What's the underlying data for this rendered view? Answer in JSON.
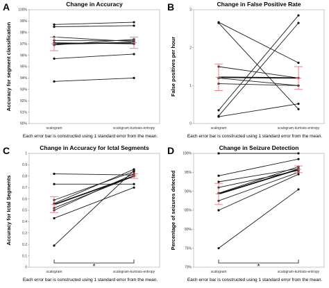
{
  "chart_data": [
    {
      "panel_label": "A",
      "type": "line",
      "title": "Change in Accuracy",
      "ylabel": "Accuracy for segment classification",
      "categories": [
        "scalogram",
        "scalogram-kurtosis-entropy"
      ],
      "yticks": [
        "90%",
        "91%",
        "92%",
        "93%",
        "94%",
        "95%",
        "96%",
        "97%",
        "98%",
        "99%",
        "100%"
      ],
      "ylim": [
        90,
        100
      ],
      "series": [
        {
          "values": [
            98.7,
            98.9
          ]
        },
        {
          "values": [
            98.5,
            98.6
          ]
        },
        {
          "values": [
            97.6,
            97.2
          ]
        },
        {
          "values": [
            97.3,
            97.3
          ]
        },
        {
          "values": [
            97.1,
            97.0
          ]
        },
        {
          "values": [
            96.9,
            97.4
          ]
        },
        {
          "values": [
            95.7,
            96.1
          ]
        },
        {
          "values": [
            93.7,
            94.0
          ]
        }
      ],
      "mean": [
        97.0,
        97.1
      ],
      "error": [
        0.6,
        0.5
      ],
      "note": "Each error bar is constructed using 1 standard error from the mean."
    },
    {
      "panel_label": "B",
      "type": "line",
      "title": "Change in False Positive Rate",
      "ylabel": "False positives per hour",
      "categories": [
        "scalogram",
        "scalogram-kurtosis-entropy"
      ],
      "yticks": [
        "0",
        "1",
        "2",
        "3"
      ],
      "ylim": [
        0,
        3
      ],
      "series": [
        {
          "values": [
            2.67,
            1.6
          ]
        },
        {
          "values": [
            2.65,
            0.38
          ]
        },
        {
          "values": [
            1.5,
            1.2
          ]
        },
        {
          "values": [
            1.2,
            1.0
          ]
        },
        {
          "values": [
            1.05,
            1.0
          ]
        },
        {
          "values": [
            0.35,
            2.85
          ]
        },
        {
          "values": [
            0.2,
            2.65
          ]
        },
        {
          "values": [
            0.18,
            0.52
          ]
        }
      ],
      "mean": [
        1.22,
        1.2
      ],
      "error": [
        0.35,
        0.3
      ],
      "note": "Each error bar is constructed using 1 standard error from the mean."
    },
    {
      "panel_label": "C",
      "type": "line",
      "title": "Change in Accuracy for Ictal Segments",
      "ylabel": "Accuracy for Ictal Segments",
      "categories": [
        "scalogram",
        "scalogram-kurtosis-entropy"
      ],
      "yticks": [
        "0",
        "0.1",
        "0.2",
        "0.3",
        "0.4",
        "0.5",
        "0.6",
        "0.7",
        "0.8",
        "0.9",
        "1"
      ],
      "ylim": [
        0,
        1
      ],
      "series": [
        {
          "values": [
            0.82,
            0.81
          ]
        },
        {
          "values": [
            0.73,
            0.73
          ]
        },
        {
          "values": [
            0.59,
            0.84
          ]
        },
        {
          "values": [
            0.56,
            0.86
          ]
        },
        {
          "values": [
            0.52,
            0.8
          ]
        },
        {
          "values": [
            0.5,
            0.82
          ]
        },
        {
          "values": [
            0.43,
            0.7
          ]
        },
        {
          "values": [
            0.19,
            0.85
          ]
        }
      ],
      "mean": [
        0.55,
        0.8
      ],
      "error": [
        0.07,
        0.02
      ],
      "significance": "*",
      "note": "Each error bar is constructed using 1 standard error from the mean."
    },
    {
      "panel_label": "D",
      "type": "line",
      "title": "Change in Seizure Detection",
      "ylabel": "Percentage of seizures detected",
      "categories": [
        "scalogram",
        "scalogram-kurtosis-entropy"
      ],
      "yticks": [
        "70%",
        "75%",
        "80%",
        "85%",
        "90%",
        "95%",
        "100%"
      ],
      "ylim": [
        70,
        100
      ],
      "series": [
        {
          "values": [
            100,
            100
          ]
        },
        {
          "values": [
            94.1,
            98.5
          ]
        },
        {
          "values": [
            92.5,
            96.0
          ]
        },
        {
          "values": [
            91.0,
            95.5
          ]
        },
        {
          "values": [
            89.5,
            96.5
          ]
        },
        {
          "values": [
            87.5,
            95.0
          ]
        },
        {
          "values": [
            85.0,
            94.5
          ]
        },
        {
          "values": [
            75.0,
            90.5
          ]
        }
      ],
      "mean": [
        89.3,
        95.8
      ],
      "error": [
        2.8,
        0.9
      ],
      "significance": "*",
      "note": "Each error bar is constructed using 1 standard error from the mean."
    }
  ]
}
